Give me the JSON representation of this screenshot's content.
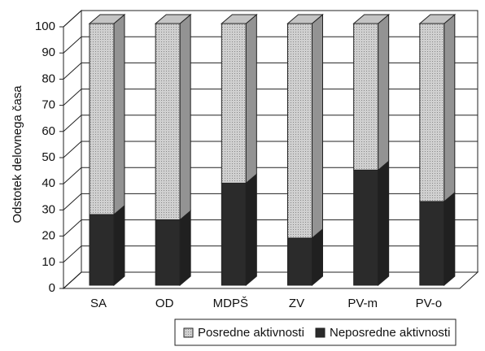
{
  "chart_data": {
    "type": "bar3d_stacked",
    "y_label": "Odstotek delovnega časa",
    "categories": [
      "SA",
      "OD",
      "MDPŠ",
      "ZV",
      "PV-m",
      "PV-o"
    ],
    "series": [
      {
        "name": "Posredne aktivnosti",
        "color": "#c4c4c4",
        "values": [
          73,
          75,
          61,
          82,
          56,
          68
        ]
      },
      {
        "name": "Neposredne aktivnosti",
        "color": "#2b2b2b",
        "values": [
          27,
          25,
          39,
          18,
          44,
          32
        ]
      }
    ],
    "ylim": [
      0,
      100
    ],
    "yticks": [
      0,
      10,
      20,
      30,
      40,
      50,
      60,
      70,
      80,
      90,
      100
    ],
    "grid": true,
    "legend": "bottom"
  }
}
